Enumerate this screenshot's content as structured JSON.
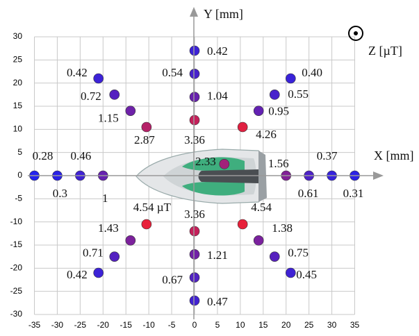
{
  "chart_data": {
    "type": "scatter",
    "x_label": "X [mm]",
    "y_label": "Y [mm]",
    "z_label": "Z [µT]",
    "x": [
      0,
      0,
      0,
      0,
      -21,
      -17.5,
      -14,
      -10.5,
      21,
      17.5,
      14,
      10.5,
      -35,
      -30,
      -25,
      -20,
      35,
      30,
      25,
      20,
      6.5,
      0,
      0,
      0,
      0,
      -10.5,
      -14,
      -17.5,
      -21,
      10.5,
      14,
      17.5,
      21
    ],
    "y": [
      27,
      22,
      17,
      12,
      21,
      17.5,
      14,
      10.5,
      21,
      17.5,
      14,
      10.5,
      0,
      0,
      0,
      0,
      0,
      0,
      0,
      0,
      2.5,
      -12,
      -17,
      -22,
      -27,
      -10.5,
      -14,
      -17.5,
      -21,
      -10.5,
      -14,
      -17.5,
      -21
    ],
    "values": [
      0.42,
      0.54,
      1.04,
      3.36,
      0.42,
      0.72,
      1.15,
      2.87,
      0.4,
      0.55,
      0.95,
      4.26,
      0.28,
      0.3,
      0.46,
      1,
      0.31,
      0.37,
      0.61,
      1.56,
      2.33,
      3.36,
      1.21,
      0.67,
      0.47,
      4.54,
      1.43,
      0.71,
      0.42,
      4.54,
      1.38,
      0.75,
      0.45
    ],
    "value_labels": [
      "0.42",
      "0.54",
      "1.04",
      "3.36",
      "0.42",
      "0.72",
      "1.15",
      "2.87",
      "0.40",
      "0.55",
      "0.95",
      "4.26",
      "0.28",
      "0.3",
      "0.46",
      "1",
      "0.31",
      "0.37",
      "0.61",
      "1.56",
      "2.33",
      "3.36",
      "1.21",
      "0.67",
      "0.47",
      "4.54 µT",
      "1.43",
      "0.71",
      "0.42",
      "4.54",
      "1.38",
      "0.75",
      "0.45"
    ],
    "xlim": [
      -35,
      35
    ],
    "ylim": [
      -30,
      30
    ],
    "xticks": [
      -35,
      -30,
      -25,
      -20,
      -15,
      -10,
      -5,
      0,
      5,
      10,
      15,
      20,
      25,
      30,
      35
    ],
    "yticks": [
      -30,
      -25,
      -20,
      -15,
      -10,
      -5,
      0,
      5,
      10,
      15,
      20,
      25,
      30
    ],
    "grid": true,
    "low_color": "#2222ee",
    "high_color": "#e8203a"
  }
}
